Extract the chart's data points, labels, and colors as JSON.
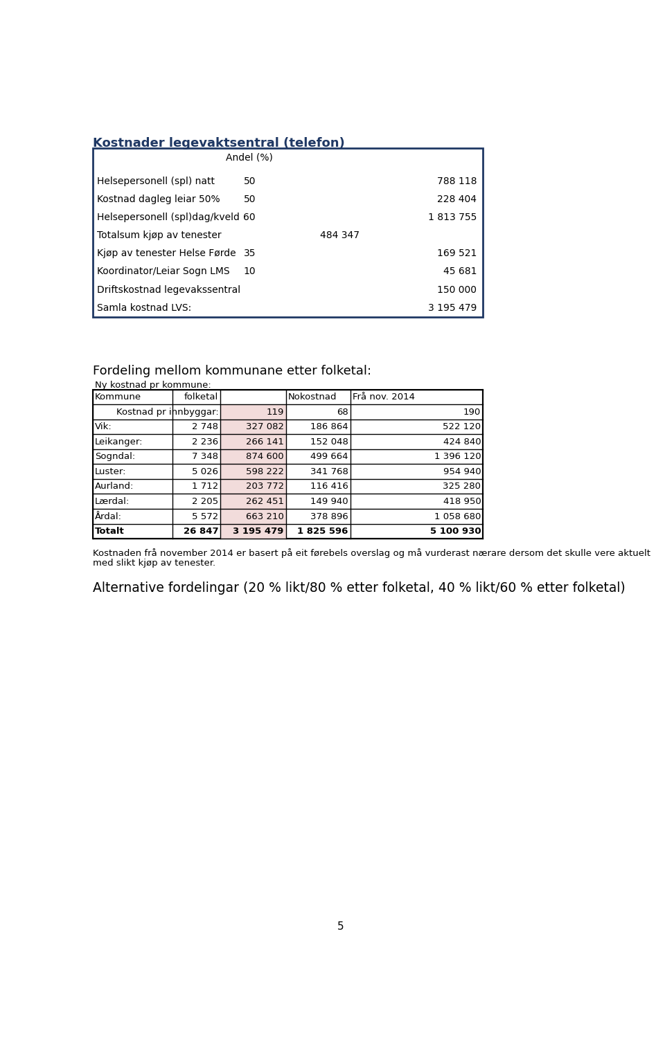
{
  "title": "Kostnader legevaktsentral (telefon)",
  "title_color": "#1f3864",
  "background_color": "#ffffff",
  "page_number": "5",
  "table1_header": "Andel (%)",
  "table1_rows": [
    {
      "label": "Helsepersonell (spl) natt",
      "andel": "50",
      "col2": "",
      "value": "788 118"
    },
    {
      "label": "Kostnad dagleg leiar 50%",
      "andel": "50",
      "col2": "",
      "value": "228 404"
    },
    {
      "label": "Helsepersonell (spl)dag/kveld",
      "andel": "60",
      "col2": "",
      "value": "1 813 755"
    },
    {
      "label": "Totalsum kjøp av tenester",
      "andel": "",
      "col2": "484 347",
      "value": ""
    },
    {
      "label": "Kjøp av tenester Helse Førde",
      "andel": "35",
      "col2": "",
      "value": "169 521"
    },
    {
      "label": "Koordinator/Leiar Sogn LMS",
      "andel": "10",
      "col2": "",
      "value": "45 681"
    },
    {
      "label": "Driftskostnad legevakssentral",
      "andel": "",
      "col2": "",
      "value": "150 000"
    },
    {
      "label": "Samla kostnad LVS:",
      "andel": "",
      "col2": "",
      "value": "3 195 479"
    }
  ],
  "section2_title": "Fordeling mellom kommunane etter folketal:",
  "section2_subtitle": "Ny kostnad pr kommune:",
  "table2_headers": [
    "Kommune",
    "folketal",
    "",
    "Nokostnad",
    "Frå nov. 2014"
  ],
  "table2_subrow": [
    "Kostnad pr innbyggar:",
    "119",
    "68",
    "190"
  ],
  "table2_rows": [
    {
      "kommune": "Vik:",
      "folketal": "2 748",
      "col2": "327 082",
      "nokostnad": "186 864",
      "fra_nov": "522 120"
    },
    {
      "kommune": "Leikanger:",
      "folketal": "2 236",
      "col2": "266 141",
      "nokostnad": "152 048",
      "fra_nov": "424 840"
    },
    {
      "kommune": "Sogndal:",
      "folketal": "7 348",
      "col2": "874 600",
      "nokostnad": "499 664",
      "fra_nov": "1 396 120"
    },
    {
      "kommune": "Luster:",
      "folketal": "5 026",
      "col2": "598 222",
      "nokostnad": "341 768",
      "fra_nov": "954 940"
    },
    {
      "kommune": "Aurland:",
      "folketal": "1 712",
      "col2": "203 772",
      "nokostnad": "116 416",
      "fra_nov": "325 280"
    },
    {
      "kommune": "Lærdal:",
      "folketal": "2 205",
      "col2": "262 451",
      "nokostnad": "149 940",
      "fra_nov": "418 950"
    },
    {
      "Årdal": "kommune",
      "folketal": "5 572",
      "col2": "663 210",
      "nokostnad": "378 896",
      "fra_nov": "1 058 680"
    },
    {
      "kommune": "Totalt",
      "folketal": "26 847",
      "col2": "3 195 479",
      "nokostnad": "1 825 596",
      "fra_nov": "5 100 930"
    }
  ],
  "note_text": "Kostnaden frå november 2014 er basert på eit førebels overslag og må vurderast nærare dersom det skulle vere aktuelt\nmed slikt kjøp av tenester.",
  "alt_text": "Alternative fordelingar (20 % likt/80 % etter folketal, 40 % likt/60 % etter folketal)",
  "table1_border_color": "#1f3864",
  "table2_border_color": "#000000",
  "table2_pink_col_bg": "#f2dcdb",
  "table_text_color": "#000000"
}
